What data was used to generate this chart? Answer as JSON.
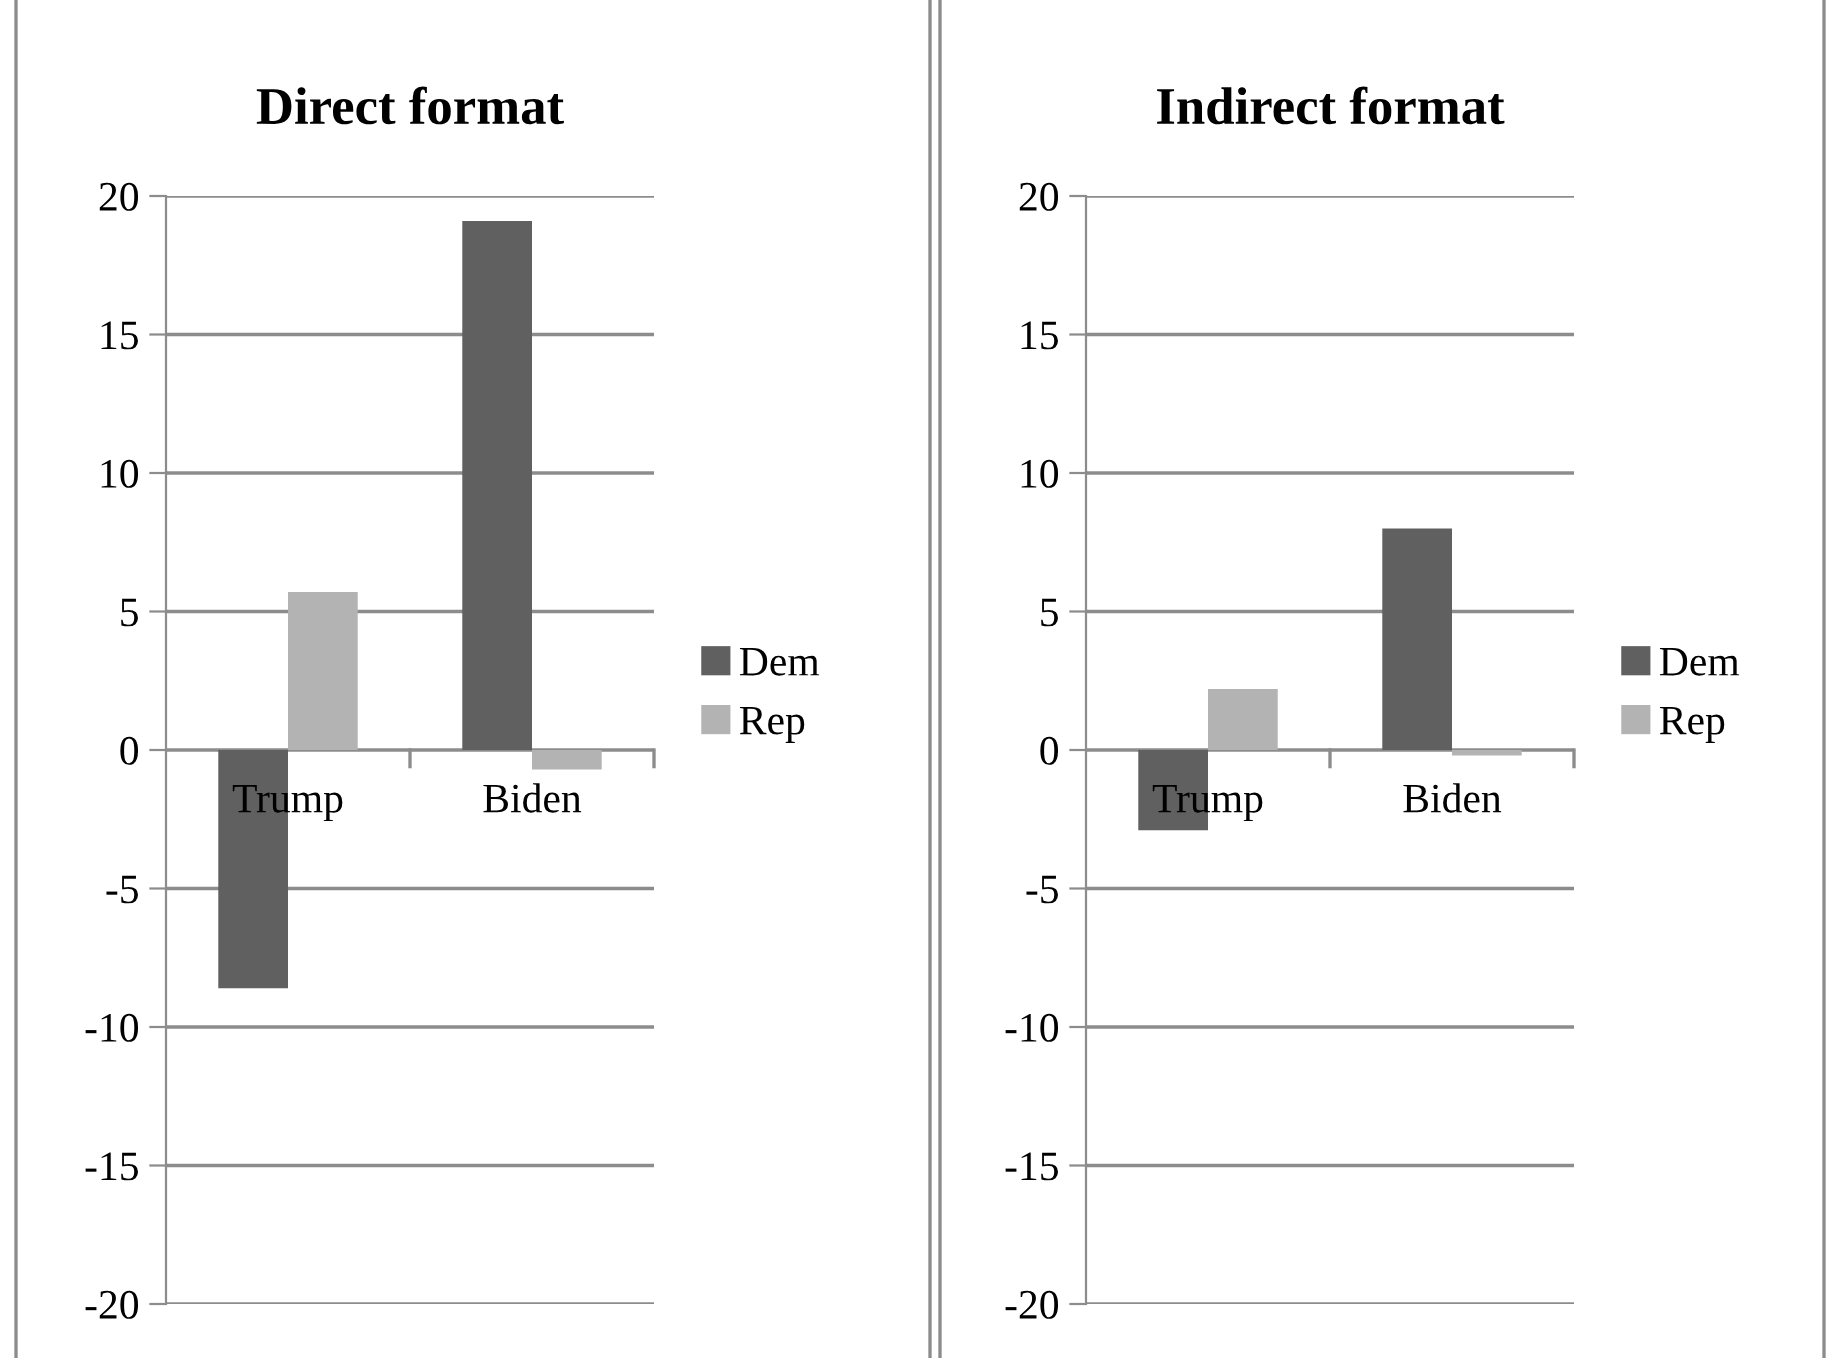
{
  "chart_data": [
    {
      "type": "bar",
      "title": "Direct format",
      "categories": [
        "Trump",
        "Biden"
      ],
      "series": [
        {
          "name": "Dem",
          "color": "#606060",
          "values": [
            -8.6,
            19.1
          ]
        },
        {
          "name": "Rep",
          "color": "#b3b3b3",
          "values": [
            5.7,
            -0.7
          ]
        }
      ],
      "ylim": [
        -20,
        20
      ],
      "yticks": [
        -20,
        -15,
        -10,
        -5,
        0,
        5,
        10,
        15,
        20
      ],
      "grid": "y",
      "legend": "right"
    },
    {
      "type": "bar",
      "title": "Indirect format",
      "categories": [
        "Trump",
        "Biden"
      ],
      "series": [
        {
          "name": "Dem",
          "color": "#606060",
          "values": [
            -2.9,
            8.0
          ]
        },
        {
          "name": "Rep",
          "color": "#b3b3b3",
          "values": [
            2.2,
            -0.2
          ]
        }
      ],
      "ylim": [
        -20,
        20
      ],
      "yticks": [
        -20,
        -15,
        -10,
        -5,
        0,
        5,
        10,
        15,
        20
      ],
      "grid": "y",
      "legend": "right"
    }
  ]
}
